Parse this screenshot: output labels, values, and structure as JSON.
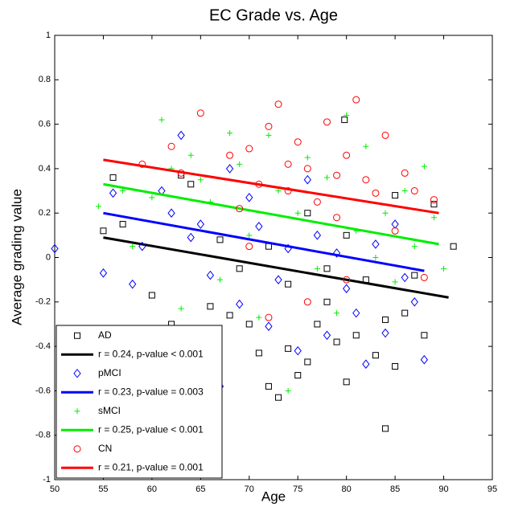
{
  "chart_data": {
    "type": "scatter",
    "title": "EC Grade vs. Age",
    "xlabel": "Age",
    "ylabel": "Average grading value",
    "xlim": [
      50,
      95
    ],
    "ylim": [
      -1,
      1
    ],
    "xticks": [
      50,
      55,
      60,
      65,
      70,
      75,
      80,
      85,
      90,
      95
    ],
    "yticks": [
      -1,
      -0.8,
      -0.6,
      -0.4,
      -0.2,
      0,
      0.2,
      0.4,
      0.6,
      0.8,
      1
    ],
    "legend": "lower left",
    "series": [
      {
        "name": "AD",
        "color": "#000000",
        "marker": "square",
        "x": [
          79.8,
          84,
          91,
          89,
          55,
          56,
          57,
          60,
          62,
          63,
          64,
          66,
          67,
          68,
          70,
          71,
          72,
          73,
          74,
          75,
          76,
          77,
          78,
          79,
          80,
          81,
          82,
          83,
          84,
          85,
          86,
          87,
          88,
          85,
          76,
          72,
          80,
          78,
          74,
          69
        ],
        "y": [
          0.62,
          -0.77,
          0.05,
          0.24,
          0.12,
          0.36,
          0.15,
          -0.17,
          -0.3,
          0.37,
          0.33,
          -0.22,
          0.08,
          -0.26,
          -0.3,
          -0.43,
          -0.58,
          -0.63,
          -0.41,
          -0.53,
          -0.47,
          -0.3,
          -0.2,
          -0.38,
          -0.56,
          -0.35,
          -0.1,
          -0.44,
          -0.28,
          -0.49,
          -0.25,
          -0.08,
          -0.35,
          0.28,
          0.2,
          0.05,
          0.1,
          -0.05,
          -0.12,
          -0.05
        ]
      },
      {
        "name": "r = 0.24, p-value < 0.001",
        "color": "#000000",
        "marker": "line",
        "x": [
          55,
          90.5
        ],
        "y": [
          0.09,
          -0.18
        ]
      },
      {
        "name": "pMCI",
        "color": "#0000ff",
        "marker": "diamond",
        "x": [
          50,
          55,
          56,
          58,
          59,
          61,
          62,
          63,
          64,
          65,
          66,
          67,
          68,
          69,
          70,
          71,
          72,
          73,
          74,
          75,
          76,
          77,
          78,
          79,
          80,
          81,
          82,
          83,
          84,
          85,
          86,
          87,
          88
        ],
        "y": [
          0.04,
          -0.07,
          0.29,
          -0.12,
          0.05,
          0.3,
          0.2,
          0.55,
          0.09,
          0.15,
          -0.08,
          -0.58,
          0.4,
          -0.21,
          0.27,
          0.14,
          -0.31,
          -0.1,
          0.04,
          -0.42,
          0.35,
          0.1,
          -0.35,
          0.02,
          -0.14,
          -0.25,
          -0.48,
          0.06,
          -0.34,
          0.15,
          -0.09,
          -0.2,
          -0.46
        ]
      },
      {
        "name": "r = 0.23, p-value = 0.003",
        "color": "#0000ff",
        "marker": "line",
        "x": [
          55,
          88
        ],
        "y": [
          0.2,
          -0.06
        ]
      },
      {
        "name": "sMCI",
        "color": "#00ee00",
        "marker": "plus",
        "x": [
          54.5,
          57,
          58,
          60,
          61,
          62,
          63,
          64,
          65,
          66,
          67,
          68,
          69,
          70,
          71,
          72,
          73,
          74,
          75,
          76,
          77,
          78,
          79,
          80,
          81,
          82,
          83,
          84,
          85,
          86,
          87,
          88,
          89,
          90
        ],
        "y": [
          0.23,
          0.3,
          0.05,
          0.27,
          0.62,
          0.4,
          -0.23,
          0.46,
          0.35,
          0.25,
          -0.1,
          0.56,
          0.42,
          0.1,
          -0.27,
          0.55,
          0.3,
          -0.6,
          0.2,
          0.45,
          -0.05,
          0.36,
          -0.25,
          0.64,
          0.12,
          0.5,
          0.0,
          0.2,
          -0.11,
          0.3,
          0.05,
          0.41,
          0.18,
          -0.05
        ]
      },
      {
        "name": "r = 0.25, p-value < 0.001",
        "color": "#00ee00",
        "marker": "line",
        "x": [
          55,
          89.5
        ],
        "y": [
          0.33,
          0.06
        ]
      },
      {
        "name": "CN",
        "color": "#ff0000",
        "marker": "circle",
        "x": [
          59,
          62,
          63,
          65,
          68,
          69,
          70,
          71,
          72,
          73,
          74,
          75,
          76,
          77,
          78,
          79,
          80,
          81,
          82,
          83,
          84,
          85,
          86,
          87,
          88,
          89,
          72,
          76,
          80,
          79,
          74,
          70
        ],
        "y": [
          0.42,
          0.5,
          0.38,
          0.65,
          0.46,
          0.22,
          0.49,
          0.33,
          0.59,
          0.69,
          0.3,
          0.52,
          0.4,
          0.25,
          0.61,
          0.18,
          0.46,
          0.71,
          0.35,
          0.29,
          0.55,
          0.12,
          0.38,
          0.3,
          -0.09,
          0.26,
          -0.27,
          -0.2,
          -0.1,
          0.37,
          0.42,
          0.05
        ]
      },
      {
        "name": "r = 0.21, p-value = 0.001",
        "color": "#ff0000",
        "marker": "line",
        "x": [
          55,
          89.5
        ],
        "y": [
          0.44,
          0.2
        ]
      }
    ]
  }
}
